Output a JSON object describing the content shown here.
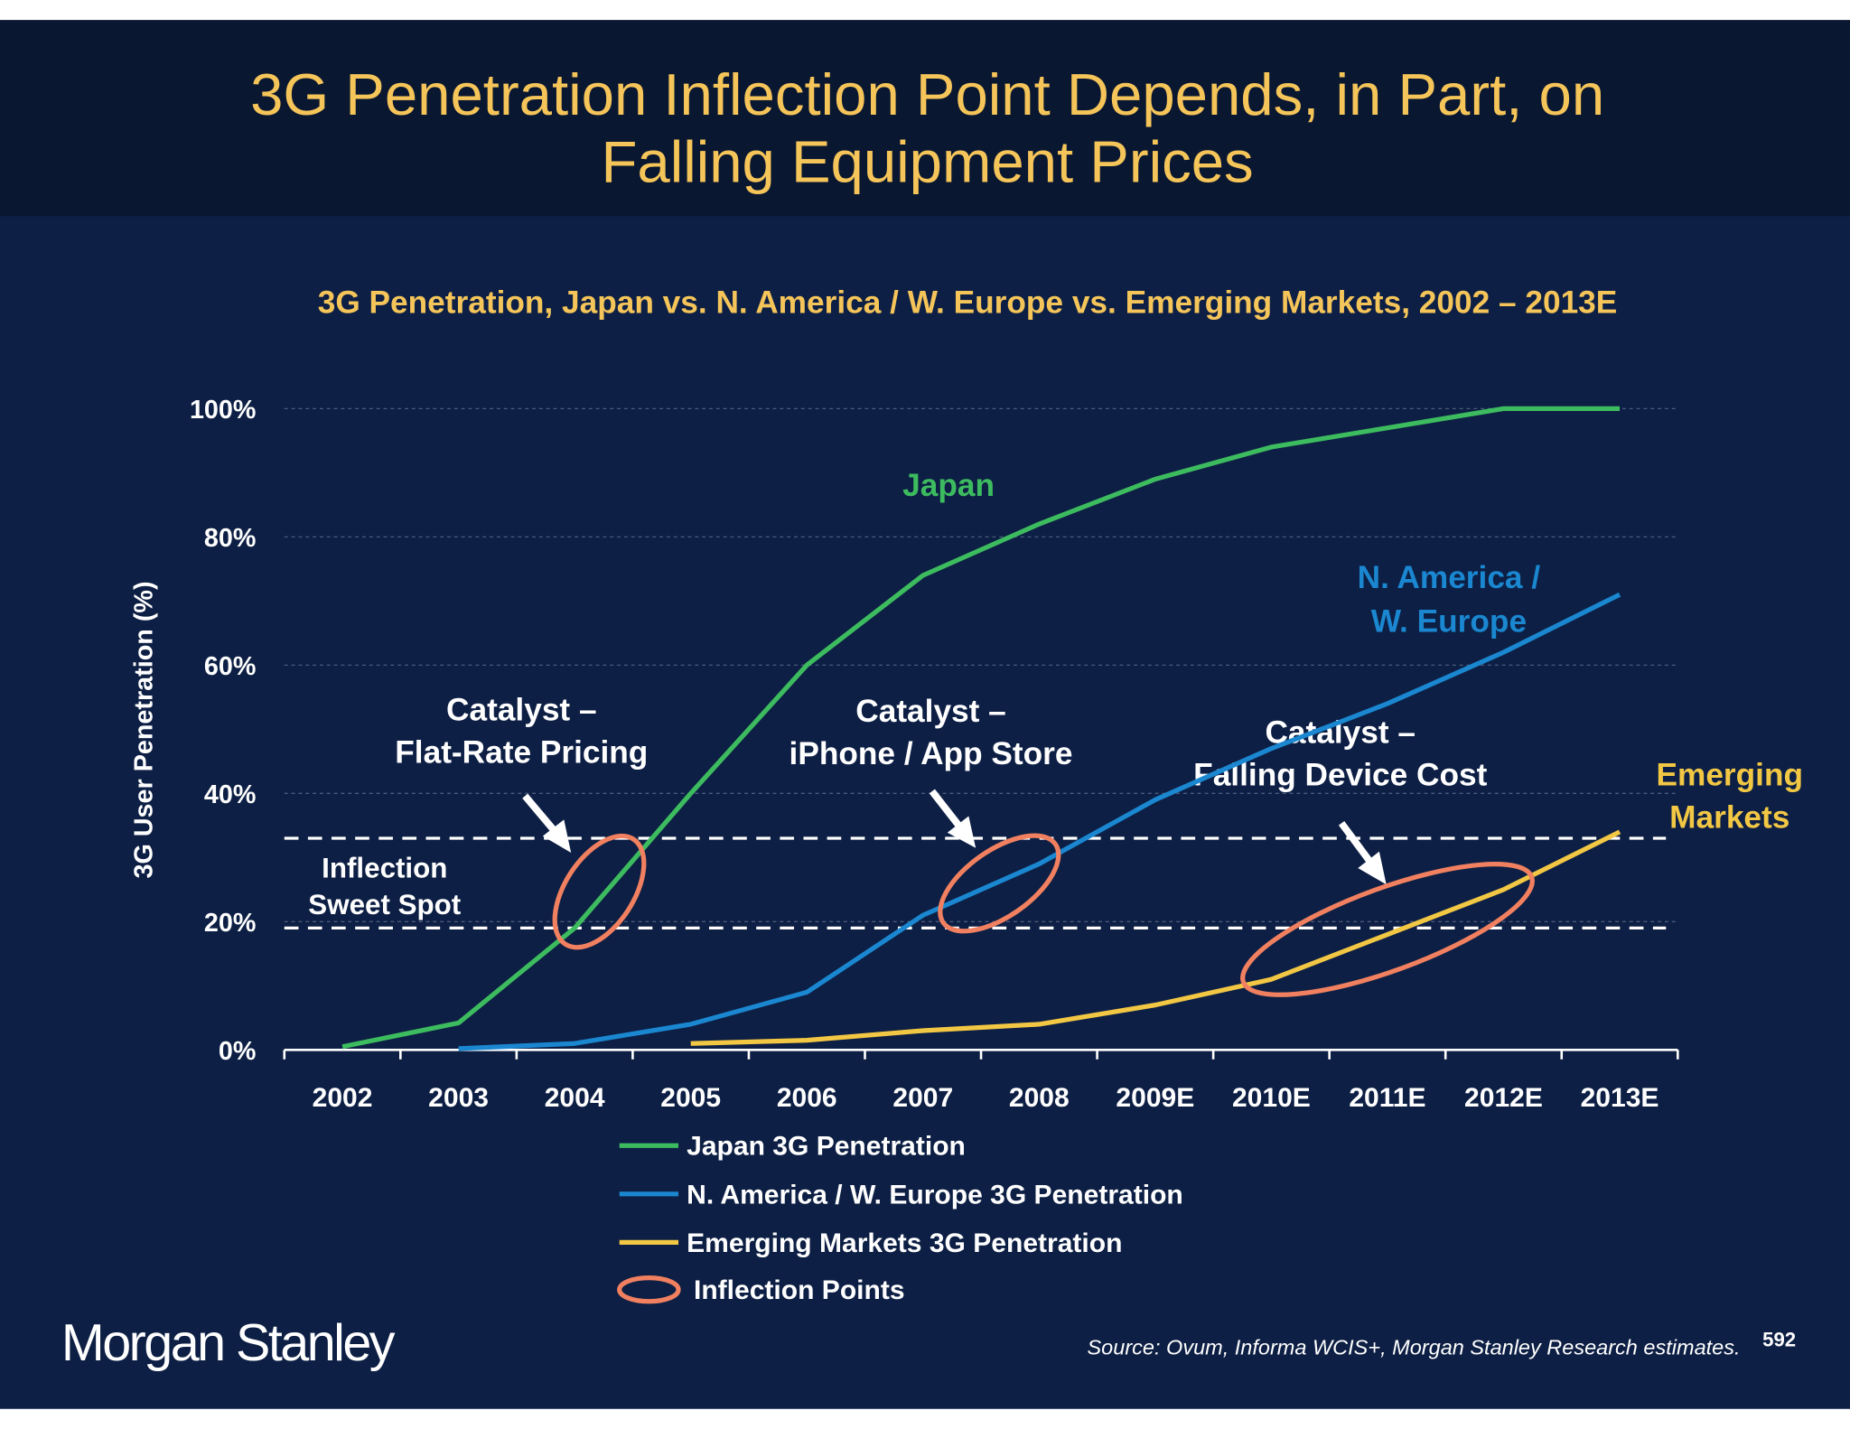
{
  "chart_data": {
    "type": "line",
    "title": [
      "3G Penetration Inflection Point Depends, in Part, on",
      "Falling Equipment Prices"
    ],
    "subtitle": "3G Penetration, Japan vs. N. America / W. Europe vs. Emerging Markets, 2002 – 2013E",
    "ylabel": "3G User Penetration (%)",
    "categories": [
      "2002",
      "2003",
      "2004",
      "2005",
      "2006",
      "2007",
      "2008",
      "2009E",
      "2010E",
      "2011E",
      "2012E",
      "2013E"
    ],
    "series": [
      {
        "name": "Japan 3G Penetration",
        "color": "#3dbb5f",
        "values": [
          0.5,
          4.2,
          19,
          40,
          60,
          74,
          82,
          89,
          94,
          97,
          100,
          100
        ]
      },
      {
        "name": "N. America / W. Europe 3G Penetration",
        "color": "#1a87d0",
        "values": [
          null,
          0.2,
          1,
          4,
          9,
          21,
          29,
          39,
          47,
          54,
          62,
          71
        ]
      },
      {
        "name": "Emerging Markets 3G Penetration",
        "color": "#f2c744",
        "values": [
          null,
          null,
          null,
          1,
          1.5,
          3,
          4,
          7,
          11,
          18,
          25,
          34
        ]
      }
    ],
    "ylim": [
      0,
      100
    ],
    "yticks": [
      {
        "value": 0,
        "label": "0%"
      },
      {
        "value": 20,
        "label": "20%"
      },
      {
        "value": 40,
        "label": "40%"
      },
      {
        "value": 60,
        "label": "60%"
      },
      {
        "value": 80,
        "label": "80%"
      },
      {
        "value": 100,
        "label": "100%"
      }
    ],
    "grid": true,
    "inflection_band": [
      19,
      33
    ],
    "inflection_legend": "Inflection Points",
    "annotations": {
      "japan": [
        "Japan"
      ],
      "na": [
        "N. America /",
        "W. Europe"
      ],
      "em": [
        "Emerging",
        "Markets"
      ],
      "sweet_spot": [
        "Inflection",
        "Sweet Spot"
      ],
      "catalyst1": [
        "Catalyst –",
        "Flat-Rate Pricing"
      ],
      "catalyst2": [
        "Catalyst –",
        "iPhone / App Store"
      ],
      "catalyst3": [
        "Catalyst –",
        "Falling Device Cost"
      ]
    },
    "source": "Source: Ovum, Informa WCIS+, Morgan Stanley Research estimates.",
    "page_number": "592",
    "brand": "Morgan Stanley"
  }
}
